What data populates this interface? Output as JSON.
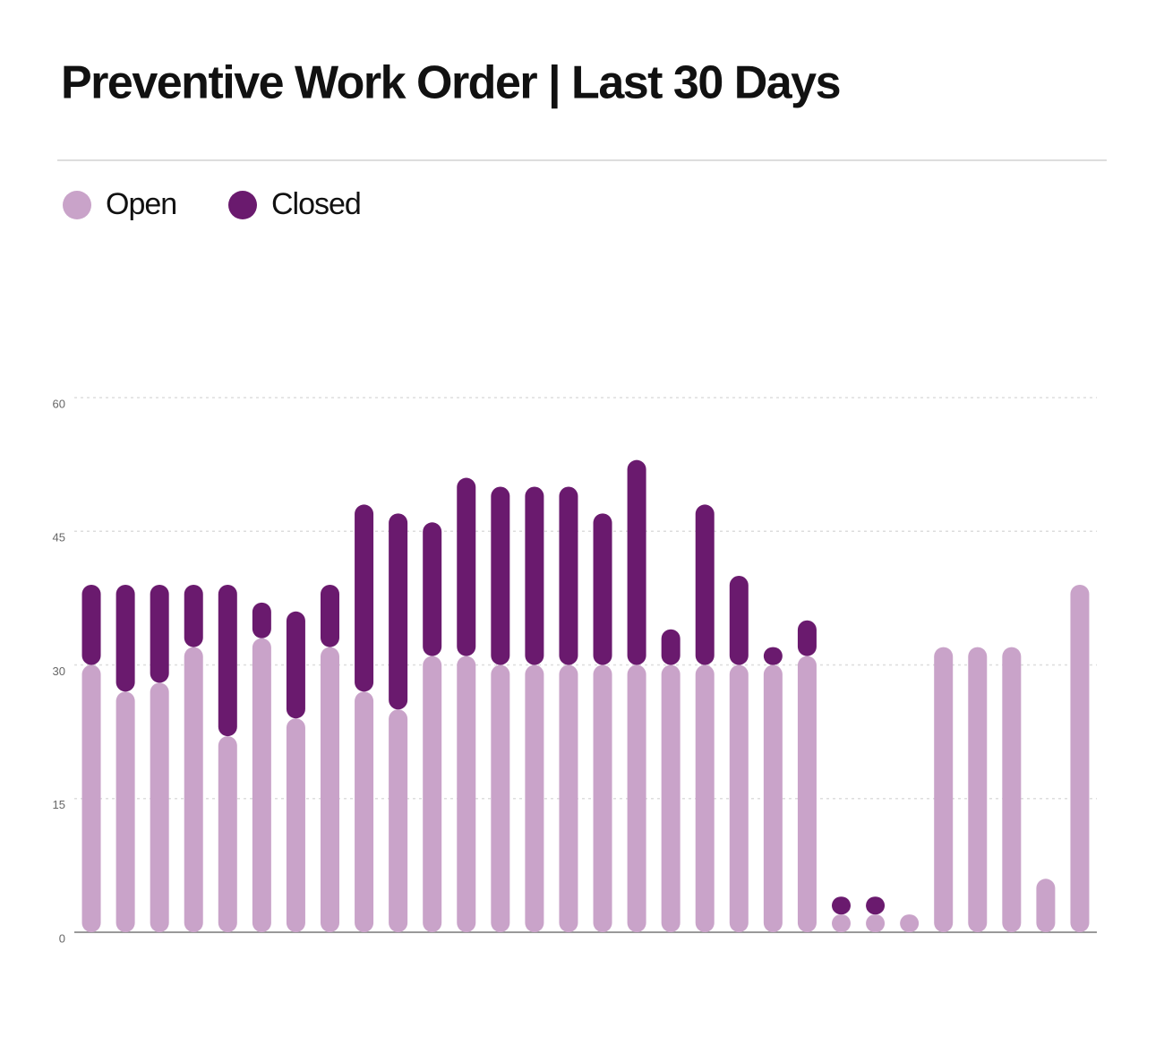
{
  "chart_data": {
    "type": "bar",
    "stacked": true,
    "title": "Preventive Work Order | Last 30 Days",
    "categories": [
      null,
      null,
      null,
      null,
      null,
      null,
      null,
      null,
      null,
      null,
      null,
      null,
      null,
      null,
      null,
      null,
      null,
      null,
      null,
      null,
      null,
      null,
      null,
      null,
      null,
      null,
      null,
      null,
      null,
      null
    ],
    "series": [
      {
        "name": "Open",
        "color": "#c9a3c9",
        "values": [
          30,
          27,
          28,
          32,
          22,
          33,
          24,
          32,
          27,
          25,
          31,
          31,
          30,
          30,
          30,
          30,
          30,
          30,
          30,
          30,
          30,
          31,
          2,
          2,
          2,
          32,
          32,
          32,
          6,
          39
        ]
      },
      {
        "name": "Closed",
        "color": "#6a1a6e",
        "values": [
          9,
          12,
          11,
          7,
          17,
          4,
          12,
          7,
          21,
          22,
          15,
          20,
          20,
          20,
          20,
          17,
          23,
          4,
          18,
          10,
          2,
          4,
          2,
          2,
          0,
          0,
          0,
          0,
          0,
          0
        ]
      }
    ],
    "ylim": [
      0,
      60
    ],
    "yticks": [
      0,
      15,
      30,
      45,
      60
    ],
    "grid": true,
    "legend": "top-left"
  }
}
